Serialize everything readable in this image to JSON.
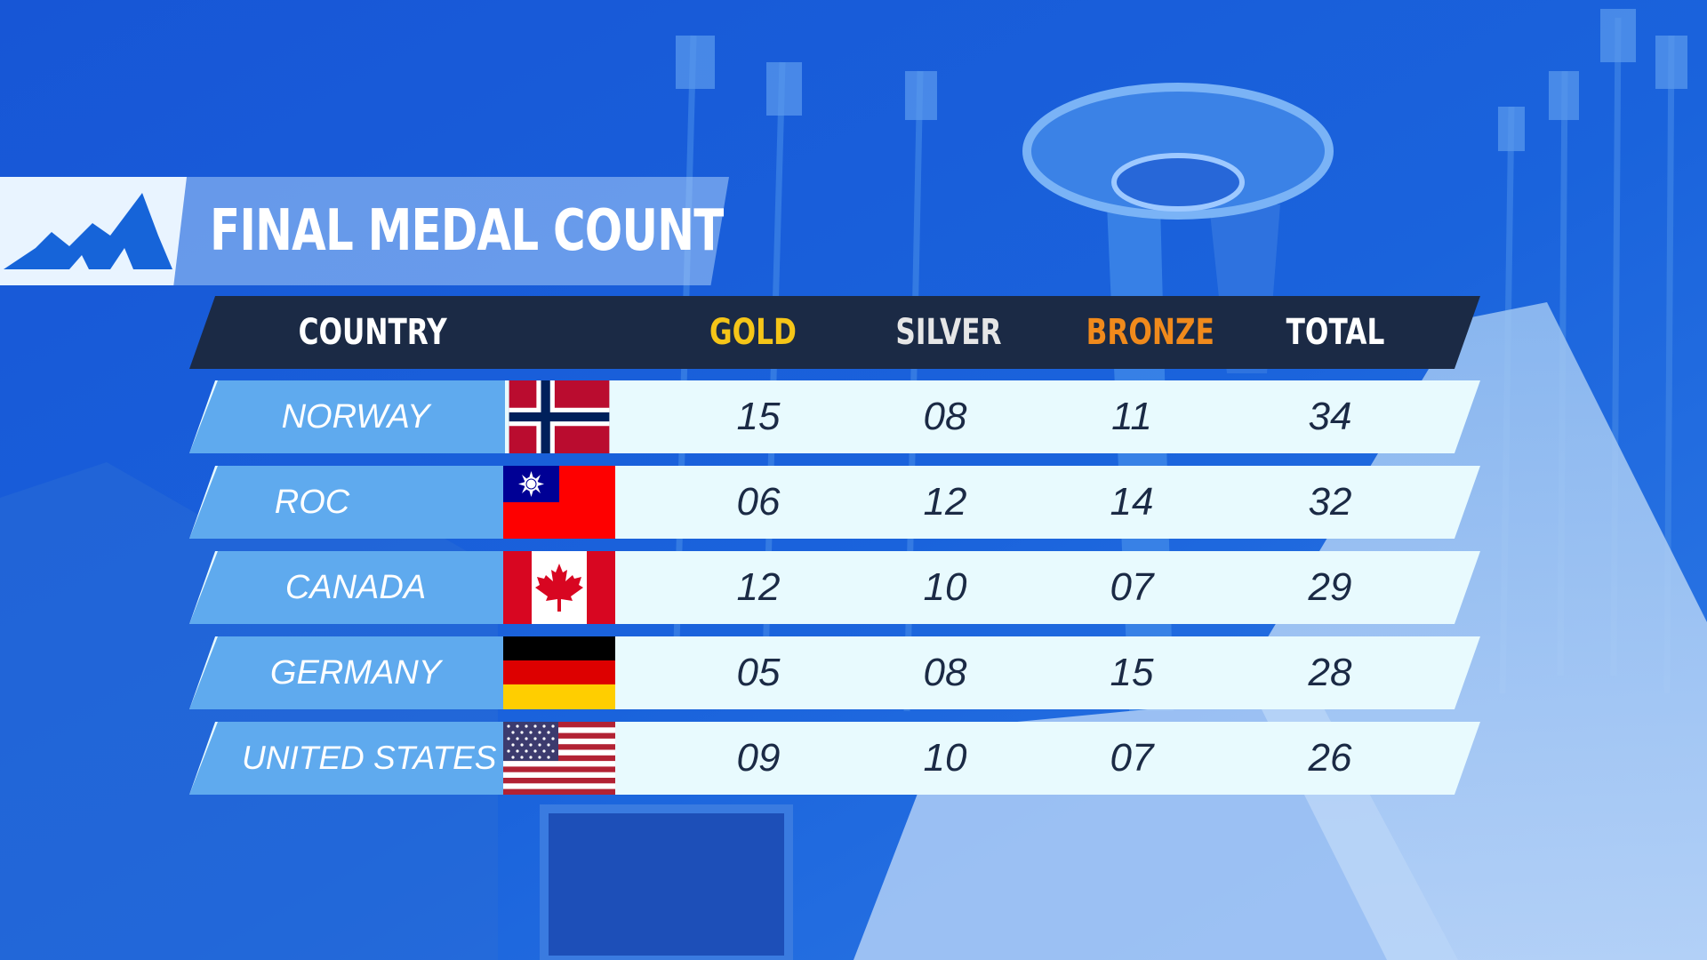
{
  "title": "FINAL MEDAL COUNT",
  "logo_icon": "mountain-logo-icon",
  "colors": {
    "background": "#1a5fd8",
    "header_bar": "#1b2a45",
    "gold": "#f5c518",
    "silver": "#e6e6e6",
    "bronze": "#f08a1c",
    "total": "#ffffff",
    "country_cell": "#5faaee",
    "row_bg": "#e8fafe",
    "number_text": "#1b2a45"
  },
  "headers": {
    "country": "COUNTRY",
    "gold": "GOLD",
    "silver": "SILVER",
    "bronze": "BRONZE",
    "total": "TOTAL"
  },
  "rows": [
    {
      "country": "NORWAY",
      "flag": "norway-flag-icon",
      "gold": "15",
      "silver": "08",
      "bronze": "11",
      "total": "34"
    },
    {
      "country": "ROC",
      "flag": "roc-flag-icon",
      "gold": "06",
      "silver": "12",
      "bronze": "14",
      "total": "32"
    },
    {
      "country": "CANADA",
      "flag": "canada-flag-icon",
      "gold": "12",
      "silver": "10",
      "bronze": "07",
      "total": "29"
    },
    {
      "country": "GERMANY",
      "flag": "germany-flag-icon",
      "gold": "05",
      "silver": "08",
      "bronze": "15",
      "total": "28"
    },
    {
      "country": "UNITED STATES",
      "flag": "united-states-flag-icon",
      "gold": "09",
      "silver": "10",
      "bronze": "07",
      "total": "26"
    }
  ]
}
